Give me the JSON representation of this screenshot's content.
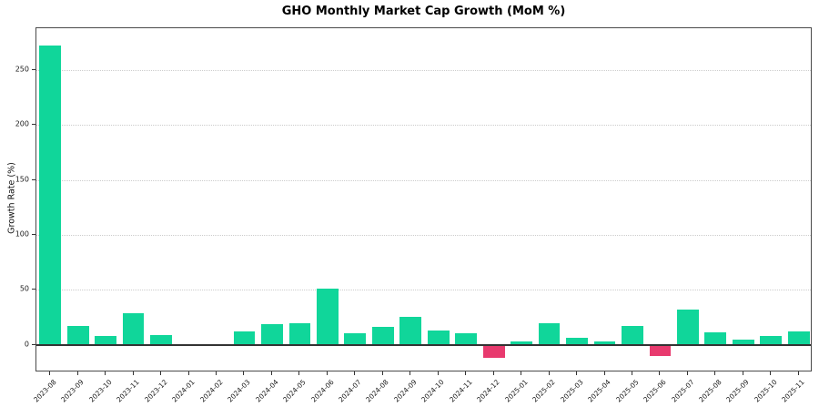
{
  "chart_data": {
    "type": "bar",
    "title": "GHO Monthly Market Cap Growth (MoM %)",
    "xlabel": "",
    "ylabel": "Growth Rate (%)",
    "categories": [
      "2023-08",
      "2023-09",
      "2023-10",
      "2023-11",
      "2023-12",
      "2024-01",
      "2024-02",
      "2024-03",
      "2024-04",
      "2024-05",
      "2024-06",
      "2024-07",
      "2024-08",
      "2024-09",
      "2024-10",
      "2024-11",
      "2024-12",
      "2025-01",
      "2025-02",
      "2025-03",
      "2025-04",
      "2025-05",
      "2025-06",
      "2025-07",
      "2025-08",
      "2025-09",
      "2025-10",
      "2025-11"
    ],
    "values": [
      272,
      17,
      8,
      29,
      9,
      0,
      0,
      12.5,
      18.5,
      20,
      51,
      10.5,
      16.5,
      25.5,
      13,
      11,
      -11.5,
      3,
      19.5,
      6.5,
      3.5,
      17.5,
      -10.5,
      32,
      11.5,
      4.5,
      8.5,
      12.5
    ],
    "yticks": [
      0,
      50,
      100,
      150,
      200,
      250
    ],
    "ylim": [
      -25,
      288
    ],
    "grid": "dotted-horizontal",
    "legend": "none",
    "colors": {
      "positive": "#10d69a",
      "negative": "#e83a6e",
      "zero_line": "#333333",
      "spine": "#4a4a4a",
      "gridline": "#cccccc",
      "text": "#1a1a1a"
    }
  }
}
